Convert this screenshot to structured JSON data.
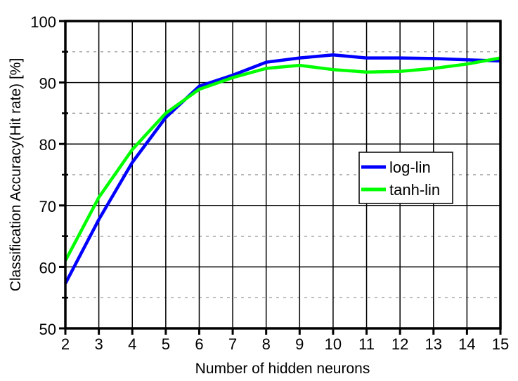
{
  "chart_data": {
    "type": "line",
    "title": "",
    "xlabel": "Number of hidden neurons",
    "ylabel": "Classification Accuracy(Hit rate) [%]",
    "x": [
      2,
      3,
      4,
      5,
      6,
      7,
      8,
      9,
      10,
      11,
      12,
      13,
      14,
      15
    ],
    "xlim": [
      2,
      15
    ],
    "ylim": [
      50,
      100
    ],
    "x_ticks": [
      "2",
      "3",
      "4",
      "5",
      "6",
      "7",
      "8",
      "9",
      "10",
      "11",
      "12",
      "13",
      "14",
      "15"
    ],
    "y_ticks": [
      "50",
      "60",
      "70",
      "80",
      "90",
      "100"
    ],
    "grid": {
      "major": true,
      "minor_y_dashed": true
    },
    "legend": {
      "position": "inside-right",
      "entries": [
        "log-lin",
        "tanh-lin"
      ]
    },
    "series": [
      {
        "name": "log-lin",
        "color": "#0000ff",
        "values": [
          57.3,
          67.7,
          77.0,
          84.3,
          89.4,
          91.2,
          93.3,
          94.0,
          94.5,
          94.0,
          94.0,
          93.9,
          93.7,
          93.5
        ]
      },
      {
        "name": "tanh-lin",
        "color": "#00ff00",
        "values": [
          61.0,
          71.3,
          79.1,
          85.0,
          88.9,
          90.8,
          92.3,
          92.8,
          92.1,
          91.7,
          91.8,
          92.3,
          93.0,
          94.0
        ]
      }
    ]
  }
}
